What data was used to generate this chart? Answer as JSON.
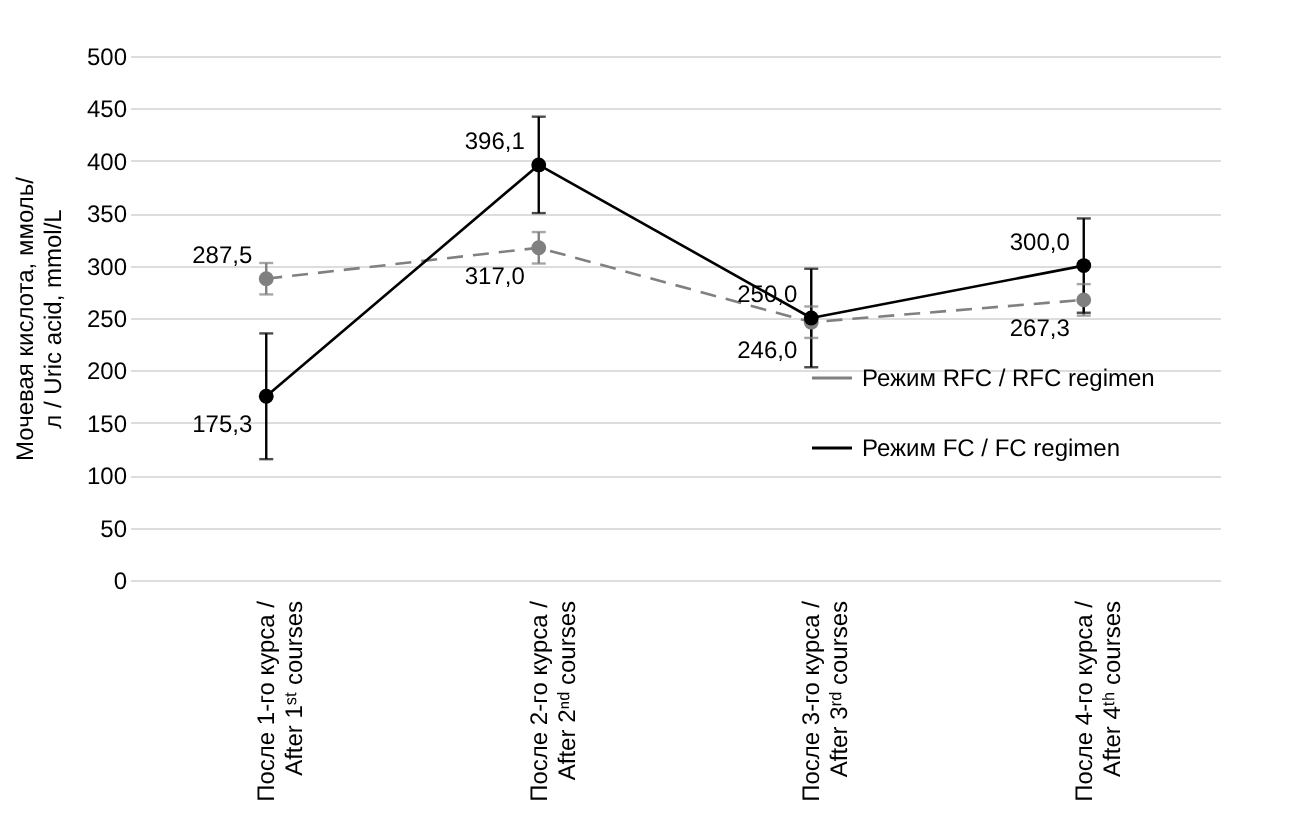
{
  "chart_data": {
    "type": "line",
    "ylabel": "Мочевая кислота, ммоль/л / Uric acid, mmol/L",
    "categories": [
      "После 1-го курса / After 1ˢᵗ courses",
      "После 2-го курса / After 2ⁿᵈ courses",
      "После 3-го курса / After 3ʳᵈ courses",
      "После 4-го курса / After 4ᵗʰ courses"
    ],
    "series": [
      {
        "name": "Режим RFC / RFC regimen",
        "color": "#808080",
        "line_style": "dashed",
        "values": [
          287.5,
          317.0,
          246.0,
          267.3
        ],
        "errors": [
          15,
          15,
          15,
          15
        ],
        "value_labels": [
          "287,5",
          "317,0",
          "246,0",
          "267,3"
        ]
      },
      {
        "name": "Режим FC / FC regimen",
        "color": "#000000",
        "line_style": "solid",
        "values": [
          175.3,
          396.1,
          250.0,
          300.0
        ],
        "errors": [
          60,
          46,
          47,
          45
        ],
        "value_labels": [
          "175,3",
          "396,1",
          "250,0",
          "300,0"
        ]
      }
    ],
    "ylim": [
      0,
      500
    ],
    "yticks": [
      0,
      50,
      100,
      150,
      200,
      250,
      300,
      350,
      400,
      450,
      500
    ],
    "grid": "y",
    "legend": "right",
    "marker": "circle"
  }
}
